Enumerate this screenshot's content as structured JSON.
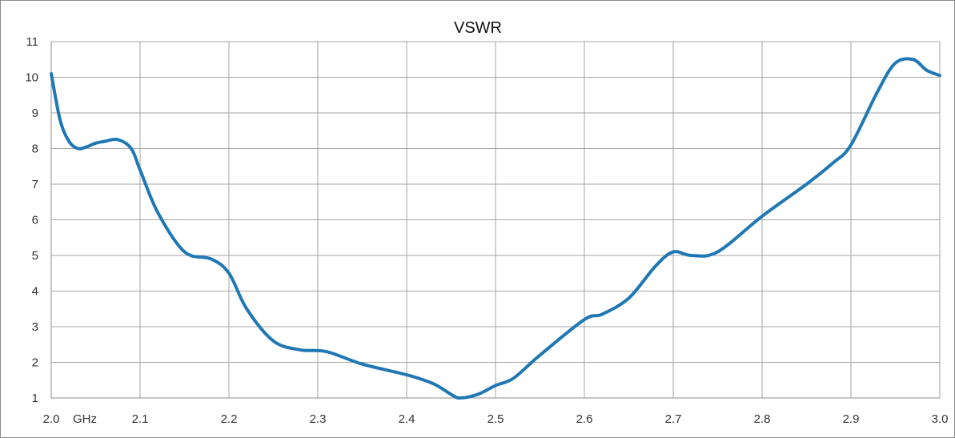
{
  "chart_data": {
    "type": "line",
    "title": "VSWR",
    "xlabel": "",
    "ylabel": "",
    "unit_label": "GHz",
    "xlim": [
      2.0,
      3.0
    ],
    "ylim": [
      1,
      11
    ],
    "x_ticks": [
      2.0,
      2.1,
      2.2,
      2.3,
      2.4,
      2.5,
      2.6,
      2.7,
      2.8,
      2.9,
      3.0
    ],
    "x_tick_labels": [
      "2.0",
      "2.1",
      "2.2",
      "2.3",
      "2.4",
      "2.5",
      "2.6",
      "2.7",
      "2.8",
      "2.9",
      "3.0"
    ],
    "y_ticks": [
      1,
      2,
      3,
      4,
      5,
      6,
      7,
      8,
      9,
      10,
      11
    ],
    "y_tick_labels": [
      "1",
      "2",
      "3",
      "4",
      "5",
      "6",
      "7",
      "8",
      "9",
      "10",
      "11"
    ],
    "grid": true,
    "series": [
      {
        "color": "#1f77b4",
        "x": [
          2.0,
          2.01,
          2.02,
          2.03,
          2.04,
          2.05,
          2.06,
          2.075,
          2.09,
          2.1,
          2.12,
          2.15,
          2.18,
          2.2,
          2.22,
          2.25,
          2.28,
          2.31,
          2.35,
          2.4,
          2.43,
          2.45,
          2.46,
          2.48,
          2.5,
          2.52,
          2.55,
          2.6,
          2.62,
          2.65,
          2.68,
          2.7,
          2.72,
          2.75,
          2.8,
          2.85,
          2.88,
          2.9,
          2.93,
          2.95,
          2.97,
          2.985,
          3.0
        ],
        "y": [
          10.1,
          8.8,
          8.2,
          8.0,
          8.05,
          8.15,
          8.2,
          8.25,
          8.0,
          7.4,
          6.2,
          5.1,
          4.9,
          4.5,
          3.5,
          2.6,
          2.35,
          2.3,
          1.95,
          1.65,
          1.4,
          1.1,
          1.0,
          1.1,
          1.35,
          1.55,
          2.2,
          3.2,
          3.35,
          3.8,
          4.7,
          5.1,
          5.0,
          5.1,
          6.1,
          7.0,
          7.6,
          8.1,
          9.6,
          10.4,
          10.5,
          10.2,
          10.05
        ]
      }
    ]
  }
}
